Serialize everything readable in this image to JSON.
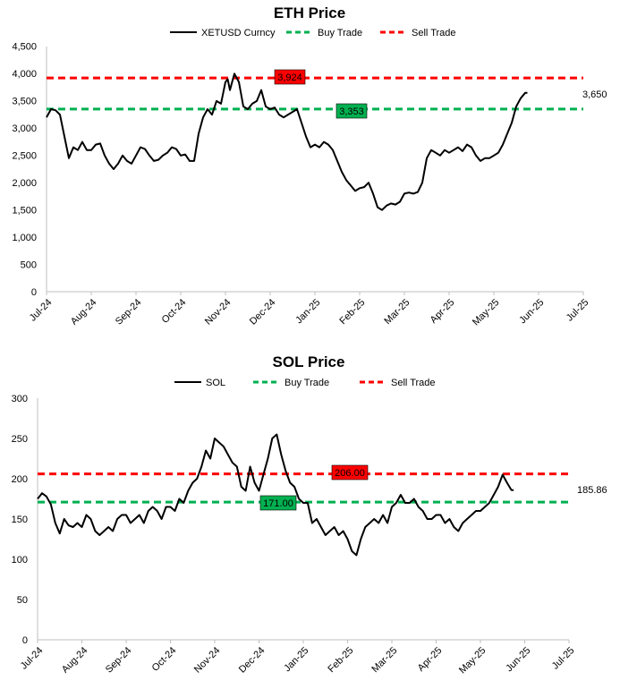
{
  "chart_data": [
    {
      "type": "line",
      "title": "ETH Price",
      "xlabel": "",
      "ylabel": "",
      "ylim": [
        0,
        4500
      ],
      "y_ticks": [
        "0",
        "500",
        "1,000",
        "1,500",
        "2,000",
        "2,500",
        "3,000",
        "3,500",
        "4,000",
        "4,500"
      ],
      "x_ticks": [
        "Jul-24",
        "Aug-24",
        "Sep-24",
        "Oct-24",
        "Nov-24",
        "Dec-24",
        "Jan-25",
        "Feb-25",
        "Mar-25",
        "Apr-25",
        "May-25",
        "Jun-25",
        "Jul-25"
      ],
      "legend_position": "top",
      "grid": false,
      "series": [
        {
          "name": "XETUSD Curncy",
          "color": "#000000",
          "style": "solid",
          "points": [
            [
              0.0,
              3200
            ],
            [
              0.1,
              3350
            ],
            [
              0.2,
              3330
            ],
            [
              0.3,
              3250
            ],
            [
              0.4,
              2850
            ],
            [
              0.5,
              2450
            ],
            [
              0.6,
              2650
            ],
            [
              0.7,
              2600
            ],
            [
              0.8,
              2750
            ],
            [
              0.9,
              2600
            ],
            [
              1.0,
              2600
            ],
            [
              1.1,
              2700
            ],
            [
              1.2,
              2720
            ],
            [
              1.3,
              2500
            ],
            [
              1.4,
              2350
            ],
            [
              1.5,
              2250
            ],
            [
              1.6,
              2350
            ],
            [
              1.7,
              2500
            ],
            [
              1.8,
              2400
            ],
            [
              1.9,
              2350
            ],
            [
              2.0,
              2500
            ],
            [
              2.1,
              2650
            ],
            [
              2.2,
              2620
            ],
            [
              2.3,
              2500
            ],
            [
              2.4,
              2400
            ],
            [
              2.5,
              2420
            ],
            [
              2.6,
              2500
            ],
            [
              2.7,
              2550
            ],
            [
              2.8,
              2650
            ],
            [
              2.9,
              2620
            ],
            [
              3.0,
              2500
            ],
            [
              3.1,
              2520
            ],
            [
              3.2,
              2400
            ],
            [
              3.3,
              2400
            ],
            [
              3.4,
              2900
            ],
            [
              3.5,
              3200
            ],
            [
              3.6,
              3350
            ],
            [
              3.7,
              3250
            ],
            [
              3.8,
              3500
            ],
            [
              3.9,
              3450
            ],
            [
              4.0,
              3850
            ],
            [
              4.05,
              3900
            ],
            [
              4.1,
              3700
            ],
            [
              4.2,
              4000
            ],
            [
              4.3,
              3850
            ],
            [
              4.4,
              3400
            ],
            [
              4.5,
              3350
            ],
            [
              4.6,
              3450
            ],
            [
              4.7,
              3500
            ],
            [
              4.8,
              3700
            ],
            [
              4.9,
              3400
            ],
            [
              5.0,
              3350
            ],
            [
              5.1,
              3380
            ],
            [
              5.2,
              3250
            ],
            [
              5.3,
              3200
            ],
            [
              5.4,
              3250
            ],
            [
              5.5,
              3300
            ],
            [
              5.6,
              3350
            ],
            [
              5.7,
              3100
            ],
            [
              5.8,
              2850
            ],
            [
              5.9,
              2650
            ],
            [
              6.0,
              2700
            ],
            [
              6.1,
              2650
            ],
            [
              6.2,
              2750
            ],
            [
              6.3,
              2700
            ],
            [
              6.4,
              2600
            ],
            [
              6.5,
              2400
            ],
            [
              6.6,
              2200
            ],
            [
              6.7,
              2050
            ],
            [
              6.8,
              1950
            ],
            [
              6.9,
              1850
            ],
            [
              7.0,
              1900
            ],
            [
              7.1,
              1920
            ],
            [
              7.2,
              2000
            ],
            [
              7.3,
              1800
            ],
            [
              7.4,
              1550
            ],
            [
              7.5,
              1500
            ],
            [
              7.6,
              1580
            ],
            [
              7.7,
              1620
            ],
            [
              7.8,
              1600
            ],
            [
              7.9,
              1650
            ],
            [
              8.0,
              1800
            ],
            [
              8.1,
              1820
            ],
            [
              8.2,
              1800
            ],
            [
              8.3,
              1830
            ],
            [
              8.4,
              2000
            ],
            [
              8.5,
              2450
            ],
            [
              8.6,
              2600
            ],
            [
              8.7,
              2550
            ],
            [
              8.8,
              2500
            ],
            [
              8.9,
              2600
            ],
            [
              9.0,
              2550
            ],
            [
              9.1,
              2600
            ],
            [
              9.2,
              2650
            ],
            [
              9.3,
              2580
            ],
            [
              9.4,
              2700
            ],
            [
              9.5,
              2650
            ],
            [
              9.6,
              2500
            ],
            [
              9.7,
              2400
            ],
            [
              9.8,
              2450
            ],
            [
              9.9,
              2450
            ],
            [
              10.0,
              2500
            ],
            [
              10.1,
              2550
            ],
            [
              10.2,
              2700
            ],
            [
              10.3,
              2900
            ],
            [
              10.4,
              3100
            ],
            [
              10.5,
              3400
            ],
            [
              10.6,
              3550
            ],
            [
              10.7,
              3650
            ],
            [
              10.75,
              3650
            ]
          ]
        },
        {
          "name": "Buy Trade",
          "color": "#00B050",
          "style": "dashed",
          "value": 3353
        },
        {
          "name": "Sell Trade",
          "color": "#FF0000",
          "style": "dashed",
          "value": 3924
        }
      ],
      "annotations": [
        {
          "text": "3,924",
          "value": 3924,
          "color": "#FF0000"
        },
        {
          "text": "3,353",
          "value": 3353,
          "color": "#00B050"
        },
        {
          "text": "3,650",
          "value": 3650
        }
      ]
    },
    {
      "type": "line",
      "title": "SOL Price",
      "xlabel": "",
      "ylabel": "",
      "ylim": [
        0,
        300
      ],
      "y_ticks": [
        "0",
        "50",
        "100",
        "150",
        "200",
        "250",
        "300"
      ],
      "x_ticks": [
        "Jul-24",
        "Aug-24",
        "Sep-24",
        "Oct-24",
        "Nov-24",
        "Dec-24",
        "Jan-25",
        "Feb-25",
        "Mar-25",
        "Apr-25",
        "May-25",
        "Jun-25",
        "Jul-25"
      ],
      "legend_position": "top",
      "grid": false,
      "series": [
        {
          "name": "SOL",
          "color": "#000000",
          "style": "solid",
          "points": [
            [
              0.0,
              175
            ],
            [
              0.1,
              182
            ],
            [
              0.2,
              178
            ],
            [
              0.3,
              168
            ],
            [
              0.4,
              145
            ],
            [
              0.5,
              132
            ],
            [
              0.6,
              150
            ],
            [
              0.7,
              142
            ],
            [
              0.8,
              140
            ],
            [
              0.9,
              145
            ],
            [
              1.0,
              140
            ],
            [
              1.1,
              155
            ],
            [
              1.2,
              150
            ],
            [
              1.3,
              135
            ],
            [
              1.4,
              130
            ],
            [
              1.5,
              135
            ],
            [
              1.6,
              140
            ],
            [
              1.7,
              135
            ],
            [
              1.8,
              150
            ],
            [
              1.9,
              155
            ],
            [
              2.0,
              155
            ],
            [
              2.1,
              145
            ],
            [
              2.2,
              150
            ],
            [
              2.3,
              155
            ],
            [
              2.4,
              145
            ],
            [
              2.5,
              160
            ],
            [
              2.6,
              165
            ],
            [
              2.7,
              160
            ],
            [
              2.8,
              150
            ],
            [
              2.9,
              165
            ],
            [
              3.0,
              165
            ],
            [
              3.1,
              160
            ],
            [
              3.2,
              175
            ],
            [
              3.3,
              170
            ],
            [
              3.4,
              185
            ],
            [
              3.5,
              195
            ],
            [
              3.6,
              200
            ],
            [
              3.7,
              215
            ],
            [
              3.8,
              235
            ],
            [
              3.9,
              225
            ],
            [
              4.0,
              250
            ],
            [
              4.1,
              245
            ],
            [
              4.2,
              240
            ],
            [
              4.3,
              230
            ],
            [
              4.4,
              220
            ],
            [
              4.5,
              215
            ],
            [
              4.6,
              190
            ],
            [
              4.7,
              185
            ],
            [
              4.8,
              215
            ],
            [
              4.9,
              195
            ],
            [
              5.0,
              185
            ],
            [
              5.1,
              205
            ],
            [
              5.2,
              225
            ],
            [
              5.3,
              250
            ],
            [
              5.4,
              255
            ],
            [
              5.5,
              230
            ],
            [
              5.6,
              210
            ],
            [
              5.7,
              195
            ],
            [
              5.8,
              190
            ],
            [
              5.9,
              175
            ],
            [
              6.0,
              170
            ],
            [
              6.1,
              170
            ],
            [
              6.2,
              145
            ],
            [
              6.3,
              150
            ],
            [
              6.4,
              140
            ],
            [
              6.5,
              130
            ],
            [
              6.6,
              135
            ],
            [
              6.7,
              140
            ],
            [
              6.8,
              130
            ],
            [
              6.9,
              135
            ],
            [
              7.0,
              125
            ],
            [
              7.1,
              110
            ],
            [
              7.2,
              105
            ],
            [
              7.3,
              125
            ],
            [
              7.4,
              140
            ],
            [
              7.5,
              145
            ],
            [
              7.6,
              150
            ],
            [
              7.7,
              145
            ],
            [
              7.8,
              155
            ],
            [
              7.9,
              145
            ],
            [
              8.0,
              165
            ],
            [
              8.1,
              170
            ],
            [
              8.2,
              180
            ],
            [
              8.3,
              170
            ],
            [
              8.4,
              170
            ],
            [
              8.5,
              175
            ],
            [
              8.6,
              165
            ],
            [
              8.7,
              160
            ],
            [
              8.8,
              150
            ],
            [
              8.9,
              150
            ],
            [
              9.0,
              155
            ],
            [
              9.1,
              155
            ],
            [
              9.2,
              145
            ],
            [
              9.3,
              150
            ],
            [
              9.4,
              140
            ],
            [
              9.5,
              135
            ],
            [
              9.6,
              145
            ],
            [
              9.7,
              150
            ],
            [
              9.8,
              155
            ],
            [
              9.9,
              160
            ],
            [
              10.0,
              160
            ],
            [
              10.1,
              165
            ],
            [
              10.2,
              170
            ],
            [
              10.3,
              180
            ],
            [
              10.4,
              190
            ],
            [
              10.5,
              205
            ],
            [
              10.6,
              195
            ],
            [
              10.7,
              186
            ],
            [
              10.75,
              185.86
            ]
          ]
        },
        {
          "name": "Buy Trade",
          "color": "#00B050",
          "style": "dashed",
          "value": 171
        },
        {
          "name": "Sell Trade",
          "color": "#FF0000",
          "style": "dashed",
          "value": 206
        }
      ],
      "annotations": [
        {
          "text": "206.00",
          "value": 206,
          "color": "#FF0000"
        },
        {
          "text": "171.00",
          "value": 171,
          "color": "#00B050"
        },
        {
          "text": "185.86",
          "value": 185.86
        }
      ]
    }
  ]
}
